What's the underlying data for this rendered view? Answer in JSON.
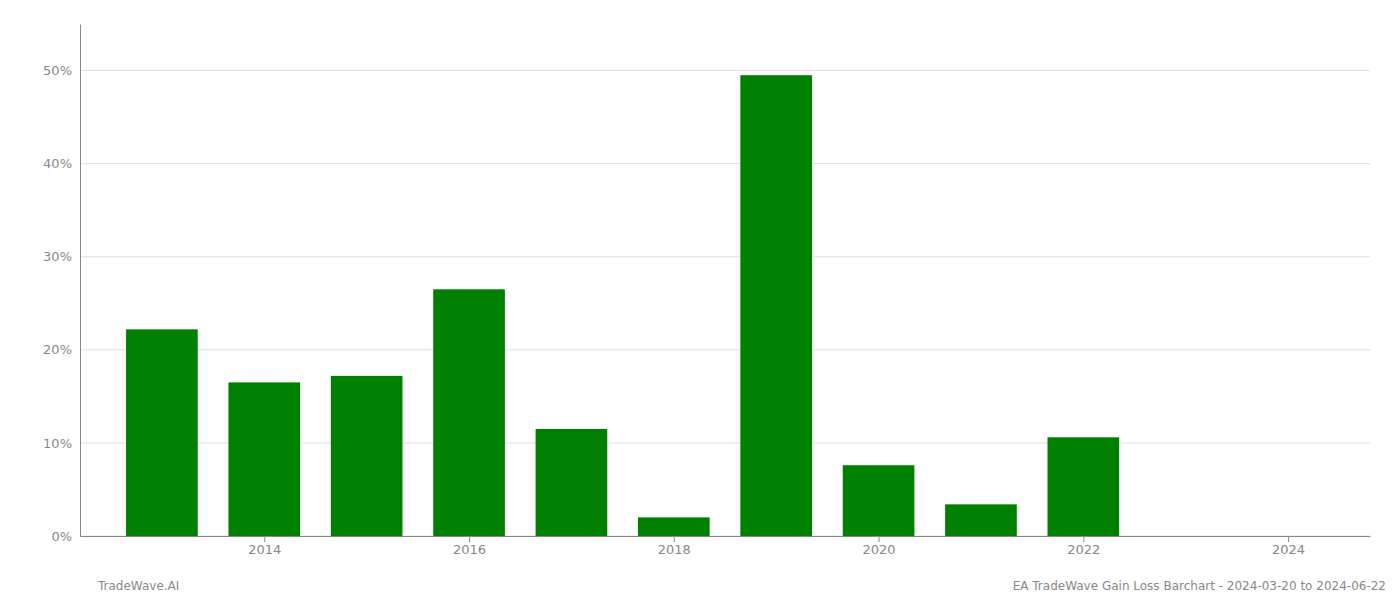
{
  "chart_data": {
    "type": "bar",
    "x": [
      2013,
      2014,
      2015,
      2016,
      2017,
      2018,
      2019,
      2020,
      2021,
      2022,
      2023
    ],
    "values": [
      0.222,
      0.165,
      0.172,
      0.265,
      0.115,
      0.02,
      0.495,
      0.076,
      0.034,
      0.106,
      0.0
    ],
    "color": "#008000",
    "xlim": [
      2012.2,
      2024.8
    ],
    "xticks": [
      2014,
      2016,
      2018,
      2020,
      2022,
      2024
    ],
    "ylim": [
      0,
      0.55
    ],
    "yticks": [
      {
        "value": 0.0,
        "label": "0%"
      },
      {
        "value": 0.1,
        "label": "10%"
      },
      {
        "value": 0.2,
        "label": "20%"
      },
      {
        "value": 0.3,
        "label": "30%"
      },
      {
        "value": 0.4,
        "label": "40%"
      },
      {
        "value": 0.5,
        "label": "50%"
      }
    ],
    "grid": true,
    "annotations": [
      "TradeWave.AI",
      "EA TradeWave Gain Loss Barchart - 2024-03-20 to 2024-06-22"
    ]
  }
}
